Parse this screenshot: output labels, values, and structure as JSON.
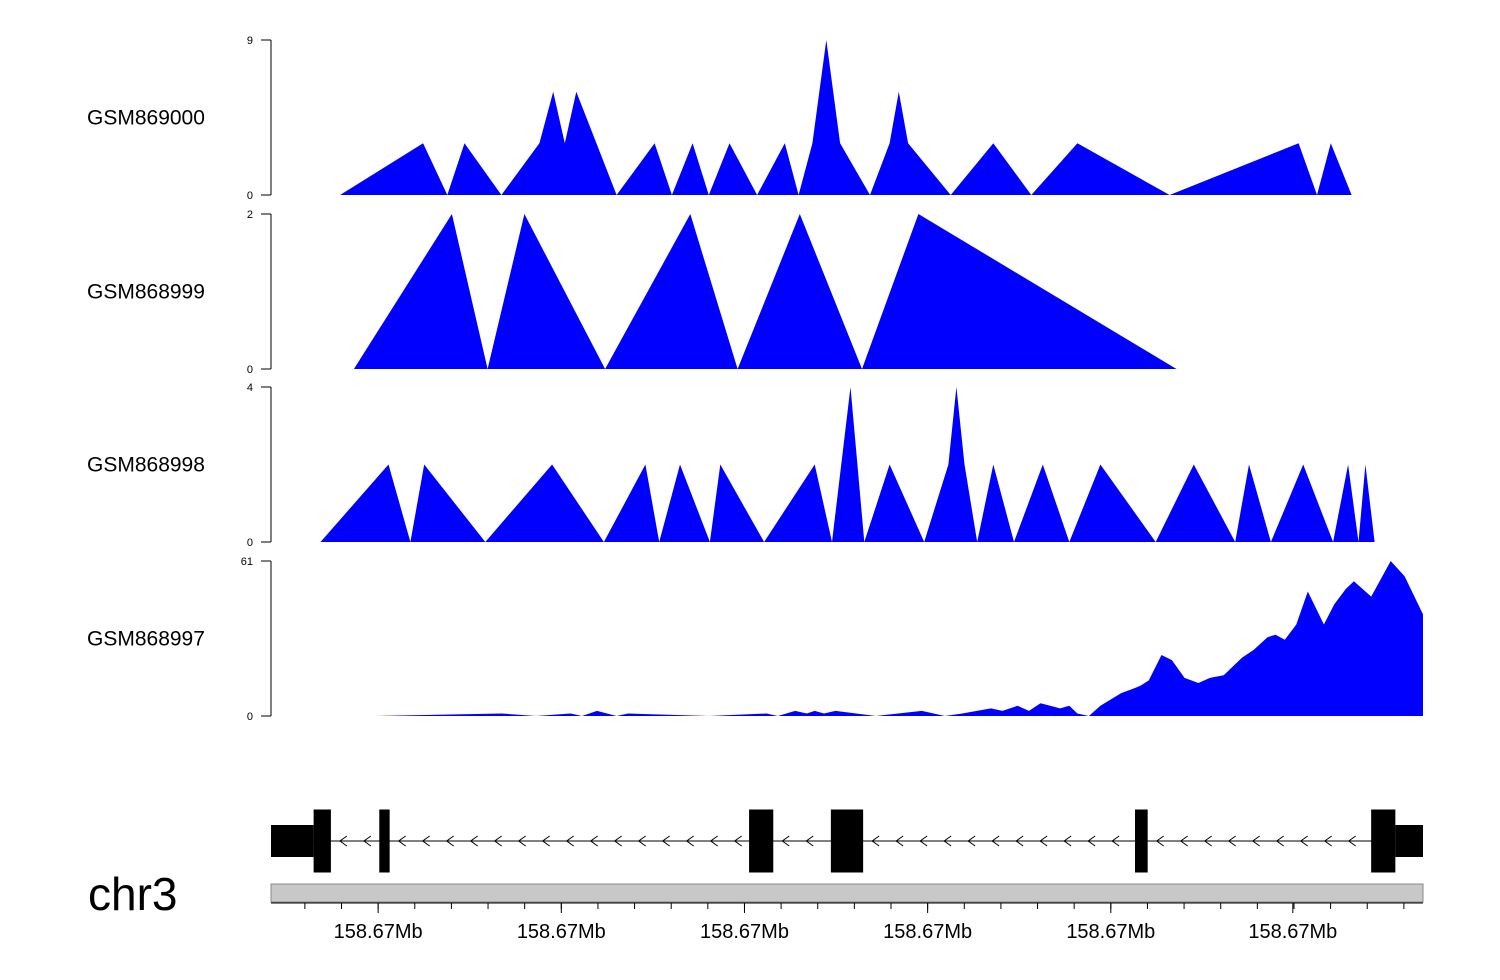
{
  "chart_data": {
    "type": "area",
    "x_range": [
      0,
      1
    ],
    "fill_color": "#0000ff",
    "tracks": [
      {
        "name": "GSM869000",
        "ylim": [
          0,
          9
        ],
        "y_ticks": [
          "9",
          "0"
        ],
        "segments": [
          [
            [
              0.06,
              0
            ],
            [
              0.132,
              3
            ],
            [
              0.153,
              0
            ]
          ],
          [
            [
              0.153,
              0
            ],
            [
              0.168,
              3
            ],
            [
              0.2,
              0
            ]
          ],
          [
            [
              0.2,
              0
            ],
            [
              0.233,
              3
            ],
            [
              0.245,
              6
            ],
            [
              0.255,
              3
            ],
            [
              0.265,
              6
            ],
            [
              0.3,
              0
            ]
          ],
          [
            [
              0.3,
              0
            ],
            [
              0.333,
              3
            ],
            [
              0.348,
              0
            ]
          ],
          [
            [
              0.348,
              0
            ],
            [
              0.366,
              3
            ],
            [
              0.38,
              0
            ]
          ],
          [
            [
              0.38,
              0
            ],
            [
              0.398,
              3
            ],
            [
              0.422,
              0
            ]
          ],
          [
            [
              0.422,
              0
            ],
            [
              0.446,
              3
            ],
            [
              0.458,
              0
            ]
          ],
          [
            [
              0.458,
              0
            ],
            [
              0.47,
              3
            ],
            [
              0.482,
              9
            ],
            [
              0.494,
              3
            ],
            [
              0.52,
              0
            ]
          ],
          [
            [
              0.52,
              0
            ],
            [
              0.537,
              3
            ],
            [
              0.545,
              6
            ],
            [
              0.553,
              3
            ],
            [
              0.59,
              0
            ]
          ],
          [
            [
              0.59,
              0
            ],
            [
              0.627,
              3
            ],
            [
              0.66,
              0
            ]
          ],
          [
            [
              0.66,
              0
            ],
            [
              0.7,
              3
            ],
            [
              0.78,
              0
            ]
          ],
          [
            [
              0.78,
              0
            ],
            [
              0.892,
              3
            ],
            [
              0.908,
              0
            ]
          ],
          [
            [
              0.908,
              0
            ],
            [
              0.92,
              3
            ],
            [
              0.938,
              0
            ]
          ]
        ]
      },
      {
        "name": "GSM868999",
        "ylim": [
          0,
          2
        ],
        "y_ticks": [
          "2",
          "0"
        ],
        "segments": [
          [
            [
              0.072,
              0
            ],
            [
              0.157,
              2
            ],
            [
              0.188,
              0
            ]
          ],
          [
            [
              0.188,
              0
            ],
            [
              0.22,
              2
            ],
            [
              0.29,
              0
            ]
          ],
          [
            [
              0.29,
              0
            ],
            [
              0.364,
              2
            ],
            [
              0.405,
              0
            ]
          ],
          [
            [
              0.405,
              0
            ],
            [
              0.459,
              2
            ],
            [
              0.513,
              0
            ]
          ],
          [
            [
              0.513,
              0
            ],
            [
              0.562,
              2
            ],
            [
              0.786,
              0
            ]
          ]
        ]
      },
      {
        "name": "GSM868998",
        "ylim": [
          0,
          4
        ],
        "y_ticks": [
          "4",
          "0"
        ],
        "segments": [
          [
            [
              0.043,
              0
            ],
            [
              0.102,
              2
            ],
            [
              0.121,
              0
            ]
          ],
          [
            [
              0.121,
              0
            ],
            [
              0.133,
              2
            ],
            [
              0.186,
              0
            ]
          ],
          [
            [
              0.186,
              0
            ],
            [
              0.244,
              2
            ],
            [
              0.289,
              0
            ]
          ],
          [
            [
              0.289,
              0
            ],
            [
              0.325,
              2
            ],
            [
              0.337,
              0
            ]
          ],
          [
            [
              0.337,
              0
            ],
            [
              0.355,
              2
            ],
            [
              0.381,
              0
            ]
          ],
          [
            [
              0.381,
              0
            ],
            [
              0.39,
              2
            ],
            [
              0.428,
              0
            ]
          ],
          [
            [
              0.428,
              0
            ],
            [
              0.472,
              2
            ],
            [
              0.487,
              0
            ]
          ],
          [
            [
              0.487,
              0
            ],
            [
              0.503,
              4
            ],
            [
              0.515,
              0
            ]
          ],
          [
            [
              0.515,
              0
            ],
            [
              0.537,
              2
            ],
            [
              0.567,
              0
            ]
          ],
          [
            [
              0.567,
              0
            ],
            [
              0.588,
              2
            ],
            [
              0.595,
              4
            ],
            [
              0.602,
              2
            ],
            [
              0.613,
              0
            ]
          ],
          [
            [
              0.613,
              0
            ],
            [
              0.627,
              2
            ],
            [
              0.645,
              0
            ]
          ],
          [
            [
              0.645,
              0
            ],
            [
              0.67,
              2
            ],
            [
              0.693,
              0
            ]
          ],
          [
            [
              0.693,
              0
            ],
            [
              0.72,
              2
            ],
            [
              0.768,
              0
            ]
          ],
          [
            [
              0.768,
              0
            ],
            [
              0.801,
              2
            ],
            [
              0.837,
              0
            ]
          ],
          [
            [
              0.837,
              0
            ],
            [
              0.849,
              2
            ],
            [
              0.868,
              0
            ]
          ],
          [
            [
              0.868,
              0
            ],
            [
              0.896,
              2
            ],
            [
              0.922,
              0
            ]
          ],
          [
            [
              0.922,
              0
            ],
            [
              0.935,
              2
            ],
            [
              0.944,
              0
            ]
          ],
          [
            [
              0.944,
              0
            ],
            [
              0.95,
              2
            ],
            [
              0.958,
              0
            ]
          ]
        ]
      },
      {
        "name": "GSM868997",
        "ylim": [
          0,
          61
        ],
        "y_ticks": [
          "61",
          "0"
        ],
        "segments": [
          [
            [
              0.09,
              0
            ],
            [
              0.2,
              1
            ],
            [
              0.23,
              0
            ],
            [
              0.26,
              1
            ],
            [
              0.27,
              0
            ],
            [
              0.283,
              2
            ],
            [
              0.3,
              0
            ],
            [
              0.31,
              1
            ],
            [
              0.38,
              0
            ],
            [
              0.43,
              1
            ],
            [
              0.44,
              0
            ],
            [
              0.455,
              2
            ],
            [
              0.465,
              1
            ],
            [
              0.472,
              2
            ],
            [
              0.48,
              1
            ],
            [
              0.49,
              2
            ],
            [
              0.525,
              0
            ],
            [
              0.565,
              2
            ],
            [
              0.585,
              0
            ],
            [
              0.6,
              1
            ],
            [
              0.625,
              3
            ],
            [
              0.635,
              2
            ],
            [
              0.648,
              4
            ],
            [
              0.658,
              2
            ],
            [
              0.668,
              5
            ],
            [
              0.685,
              3
            ],
            [
              0.693,
              4
            ],
            [
              0.7,
              1
            ],
            [
              0.71,
              0
            ],
            [
              0.72,
              4
            ],
            [
              0.738,
              9
            ],
            [
              0.75,
              11
            ],
            [
              0.755,
              12
            ],
            [
              0.762,
              14
            ],
            [
              0.773,
              24
            ],
            [
              0.782,
              22
            ],
            [
              0.793,
              15
            ],
            [
              0.805,
              13
            ],
            [
              0.815,
              15
            ],
            [
              0.827,
              16
            ],
            [
              0.843,
              23
            ],
            [
              0.853,
              26
            ],
            [
              0.865,
              31
            ],
            [
              0.872,
              32
            ],
            [
              0.88,
              30
            ],
            [
              0.89,
              36
            ],
            [
              0.9,
              49
            ],
            [
              0.914,
              36
            ],
            [
              0.923,
              44
            ],
            [
              0.933,
              50
            ],
            [
              0.94,
              53
            ],
            [
              0.955,
              47
            ],
            [
              0.972,
              61
            ],
            [
              0.984,
              55
            ],
            [
              1.0,
              40
            ],
            [
              1.0,
              0
            ]
          ]
        ]
      }
    ],
    "gene_model": {
      "chromosome": "chr3",
      "strand": "-",
      "exons": [
        {
          "start": 0.0,
          "end": 0.037,
          "type": "utr"
        },
        {
          "start": 0.037,
          "end": 0.052,
          "type": "cds"
        },
        {
          "start": 0.094,
          "end": 0.103,
          "type": "cds"
        },
        {
          "start": 0.415,
          "end": 0.436,
          "type": "cds"
        },
        {
          "start": 0.486,
          "end": 0.514,
          "type": "cds"
        },
        {
          "start": 0.75,
          "end": 0.761,
          "type": "cds"
        },
        {
          "start": 0.955,
          "end": 0.976,
          "type": "cds"
        },
        {
          "start": 0.976,
          "end": 1.0,
          "type": "utr"
        }
      ],
      "color": "#000000"
    },
    "x_axis": {
      "ideogram_color": "#c8c8c8",
      "tick_labels": [
        "158.67Mb",
        "158.67Mb",
        "158.67Mb",
        "158.67Mb",
        "158.67Mb",
        "158.67Mb"
      ],
      "tick_positions": [
        0.093,
        0.252,
        0.411,
        0.57,
        0.729,
        0.887
      ]
    }
  }
}
